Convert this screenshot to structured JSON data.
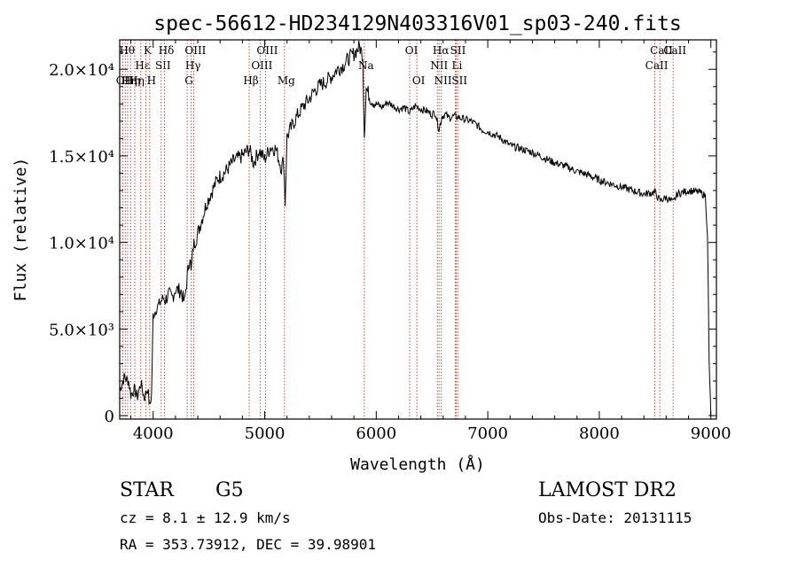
{
  "chart_data": {
    "type": "line",
    "title": "spec-56612-HD234129N403316V01_sp03-240.fits",
    "xlabel": "Wavelength (Å)",
    "ylabel": "Flux (relative)",
    "xlim": [
      3700,
      9050
    ],
    "ylim": [
      -200,
      21700
    ],
    "xticks": [
      {
        "value": 4000,
        "label": "4000"
      },
      {
        "value": 5000,
        "label": "5000"
      },
      {
        "value": 6000,
        "label": "6000"
      },
      {
        "value": 7000,
        "label": "7000"
      },
      {
        "value": 8000,
        "label": "8000"
      },
      {
        "value": 9000,
        "label": "9000"
      }
    ],
    "yticks": [
      {
        "value": 0,
        "label": "0"
      },
      {
        "value": 5000,
        "label": "5.0×10³"
      },
      {
        "value": 10000,
        "label": "1.0×10⁴"
      },
      {
        "value": 15000,
        "label": "1.5×10⁴"
      },
      {
        "value": 20000,
        "label": "2.0×10⁴"
      }
    ],
    "grid": false,
    "series": [
      {
        "x": [
          3700,
          3740,
          3780,
          3800,
          3830,
          3860,
          3890,
          3920,
          3950,
          3970,
          3985,
          4000,
          4030,
          4060,
          4090,
          4110,
          4140,
          4170,
          4200,
          4250,
          4280,
          4300,
          4330,
          4340,
          4360,
          4390,
          4430,
          4480,
          4530,
          4580,
          4650,
          4720,
          4800,
          4860,
          4900,
          4950,
          5000,
          5050,
          5100,
          5150,
          5170,
          5183,
          5200,
          5250,
          5300,
          5350,
          5400,
          5450,
          5500,
          5550,
          5600,
          5650,
          5700,
          5750,
          5800,
          5850,
          5880,
          5893,
          5910,
          5950,
          6000,
          6050,
          6100,
          6150,
          6200,
          6250,
          6300,
          6350,
          6400,
          6450,
          6500,
          6530,
          6563,
          6590,
          6620,
          6650,
          6700,
          6750,
          6800,
          6850,
          6900,
          6950,
          7000,
          7100,
          7200,
          7300,
          7400,
          7500,
          7600,
          7700,
          7800,
          7900,
          8000,
          8100,
          8200,
          8300,
          8400,
          8500,
          8542,
          8600,
          8662,
          8700,
          8800,
          8900,
          8950,
          8970,
          8985,
          9000
        ],
        "y": [
          1500,
          2200,
          2000,
          1200,
          1500,
          1100,
          1900,
          1000,
          1600,
          500,
          1200,
          5800,
          6200,
          6500,
          6800,
          6700,
          7000,
          6800,
          7300,
          7200,
          6500,
          7700,
          9300,
          8200,
          9800,
          10300,
          11200,
          12300,
          13000,
          13700,
          14100,
          14700,
          15000,
          15400,
          14600,
          15300,
          14800,
          15500,
          15400,
          14300,
          14800,
          12300,
          16100,
          16800,
          17400,
          17900,
          18300,
          18800,
          19100,
          19300,
          19600,
          20000,
          20200,
          20600,
          20900,
          21300,
          20800,
          16200,
          18900,
          18300,
          18000,
          17800,
          18100,
          17900,
          17700,
          17800,
          17500,
          17900,
          17700,
          17600,
          17400,
          17500,
          16500,
          17300,
          17400,
          17200,
          17300,
          17200,
          17100,
          17000,
          16800,
          16500,
          16400,
          16100,
          15600,
          15400,
          15200,
          14900,
          14600,
          14400,
          14100,
          13900,
          13600,
          13400,
          13200,
          13000,
          12800,
          12900,
          12400,
          12600,
          12300,
          12800,
          13000,
          12900,
          12700,
          10500,
          3000,
          0
        ]
      }
    ],
    "line_annotations": [
      {
        "x": 3727,
        "label": "OII",
        "row": 3
      },
      {
        "x": 3750,
        "label": "Hθ",
        "row": 1
      },
      {
        "x": 3771,
        "label": "Hη",
        "row": 3
      },
      {
        "x": 3798,
        "label": "Hη",
        "row": 3
      },
      {
        "x": 3835,
        "label": "Hη",
        "row": 3
      },
      {
        "x": 3889,
        "label": "Hε",
        "row": 2
      },
      {
        "x": 3934,
        "label": "K",
        "row": 1
      },
      {
        "x": 3969,
        "label": "H",
        "row": 3
      },
      {
        "x": 4072,
        "label": "SII",
        "row": 2
      },
      {
        "x": 4102,
        "label": "Hδ",
        "row": 1
      },
      {
        "x": 4305,
        "label": "G",
        "row": 3
      },
      {
        "x": 4341,
        "label": "Hγ",
        "row": 2
      },
      {
        "x": 4363,
        "label": "OIII",
        "row": 1
      },
      {
        "x": 4861,
        "label": "Hβ",
        "row": 3
      },
      {
        "x": 4959,
        "label": "OIII",
        "row": 2
      },
      {
        "x": 5007,
        "label": "OIII",
        "row": 1
      },
      {
        "x": 5177,
        "label": "Mg",
        "row": 3
      },
      {
        "x": 5893,
        "label": "Na",
        "row": 2
      },
      {
        "x": 6300,
        "label": "OI",
        "row": 1
      },
      {
        "x": 6364,
        "label": "OI",
        "row": 3
      },
      {
        "x": 6548,
        "label": "NII",
        "row": 2
      },
      {
        "x": 6563,
        "label": "Hα",
        "row": 1
      },
      {
        "x": 6583,
        "label": "NII",
        "row": 3
      },
      {
        "x": 6708,
        "label": "Li",
        "row": 2
      },
      {
        "x": 6717,
        "label": "SII",
        "row": 1
      },
      {
        "x": 6731,
        "label": "SII",
        "row": 3
      },
      {
        "x": 8498,
        "label": "CaII",
        "row": 2
      },
      {
        "x": 8542,
        "label": "CaII",
        "row": 1
      },
      {
        "x": 8662,
        "label": "CaII",
        "row": 1
      }
    ]
  },
  "info": {
    "object_class": "STAR",
    "subclass": "G5",
    "redshift": "cz = 8.1 ± 12.9 km/s",
    "coords": "RA = 353.73912, DEC =  39.98901",
    "survey": "LAMOST DR2",
    "obs_date": "Obs-Date: 20131115"
  }
}
